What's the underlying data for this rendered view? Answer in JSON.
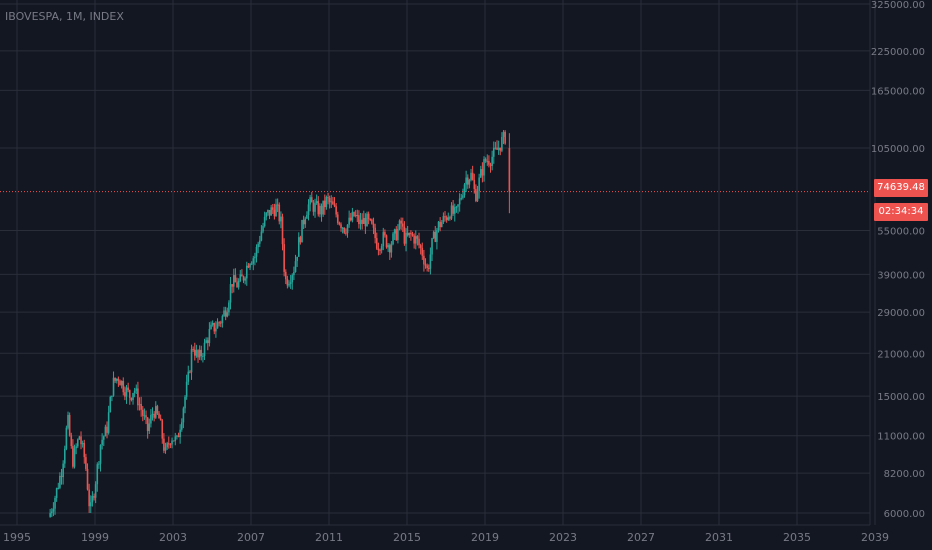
{
  "symbol_label": "IBOVESPA, 1M, INDEX",
  "last_price_label": "74639.48",
  "countdown_label": "02:34:34",
  "colors": {
    "background": "#131722",
    "grid": "#2a2e39",
    "axis_text": "#787b86",
    "up": "#26a69a",
    "down": "#ef5350",
    "price_line": "#ef5350"
  },
  "chart_data": {
    "type": "candlestick",
    "title": "IBOVESPA, 1M, INDEX",
    "scale": "log",
    "ylim": [
      6000,
      325000
    ],
    "y_ticks": [
      "6000.00",
      "8200.00",
      "11000.00",
      "15000.00",
      "21000.00",
      "29000.00",
      "39000.00",
      "55000.00",
      "74639.48",
      "105000.00",
      "165000.00",
      "225000.00",
      "325000.00"
    ],
    "x_ticks": [
      "1995",
      "1999",
      "2003",
      "2007",
      "2011",
      "2015",
      "2019",
      "2023",
      "2027",
      "2031",
      "2035",
      "2039"
    ],
    "grid": true,
    "last_price": 74639.48,
    "series": [
      {
        "values": [
          {
            "t": 1996.7,
            "close": 6000
          },
          {
            "t": 1997.0,
            "close": 7000
          },
          {
            "t": 1997.3,
            "close": 8500
          },
          {
            "t": 1997.6,
            "close": 12500
          },
          {
            "t": 1997.85,
            "close": 9000
          },
          {
            "t": 1998.2,
            "close": 11000
          },
          {
            "t": 1998.5,
            "close": 9000
          },
          {
            "t": 1998.75,
            "close": 6000
          },
          {
            "t": 1999.0,
            "close": 7500
          },
          {
            "t": 1999.3,
            "close": 10500
          },
          {
            "t": 1999.6,
            "close": 11500
          },
          {
            "t": 1999.9,
            "close": 16500
          },
          {
            "t": 2000.2,
            "close": 17500
          },
          {
            "t": 2000.5,
            "close": 16000
          },
          {
            "t": 2000.8,
            "close": 15000
          },
          {
            "t": 2001.0,
            "close": 16000
          },
          {
            "t": 2001.3,
            "close": 14000
          },
          {
            "t": 2001.7,
            "close": 11500
          },
          {
            "t": 2002.0,
            "close": 13500
          },
          {
            "t": 2002.3,
            "close": 12500
          },
          {
            "t": 2002.6,
            "close": 9500
          },
          {
            "t": 2002.9,
            "close": 11000
          },
          {
            "t": 2003.2,
            "close": 10500
          },
          {
            "t": 2003.5,
            "close": 13500
          },
          {
            "t": 2003.8,
            "close": 17500
          },
          {
            "t": 2004.0,
            "close": 22500
          },
          {
            "t": 2004.3,
            "close": 20000
          },
          {
            "t": 2004.6,
            "close": 22000
          },
          {
            "t": 2004.9,
            "close": 25000
          },
          {
            "t": 2005.2,
            "close": 26000
          },
          {
            "t": 2005.5,
            "close": 27500
          },
          {
            "t": 2005.8,
            "close": 31000
          },
          {
            "t": 2006.0,
            "close": 37000
          },
          {
            "t": 2006.3,
            "close": 36000
          },
          {
            "t": 2006.6,
            "close": 38000
          },
          {
            "t": 2006.9,
            "close": 44000
          },
          {
            "t": 2007.2,
            "close": 45000
          },
          {
            "t": 2007.5,
            "close": 54000
          },
          {
            "t": 2007.8,
            "close": 62000
          },
          {
            "t": 2008.0,
            "close": 64000
          },
          {
            "t": 2008.3,
            "close": 66000
          },
          {
            "t": 2008.55,
            "close": 58000
          },
          {
            "t": 2008.75,
            "close": 37000
          },
          {
            "t": 2008.95,
            "close": 38000
          },
          {
            "t": 2009.2,
            "close": 41000
          },
          {
            "t": 2009.5,
            "close": 52000
          },
          {
            "t": 2009.8,
            "close": 64000
          },
          {
            "t": 2010.0,
            "close": 68000
          },
          {
            "t": 2010.3,
            "close": 66000
          },
          {
            "t": 2010.6,
            "close": 64000
          },
          {
            "t": 2010.9,
            "close": 70000
          },
          {
            "t": 2011.2,
            "close": 66000
          },
          {
            "t": 2011.5,
            "close": 60000
          },
          {
            "t": 2011.8,
            "close": 56000
          },
          {
            "t": 2012.0,
            "close": 58000
          },
          {
            "t": 2012.3,
            "close": 62000
          },
          {
            "t": 2012.6,
            "close": 58000
          },
          {
            "t": 2012.9,
            "close": 60000
          },
          {
            "t": 2013.2,
            "close": 56000
          },
          {
            "t": 2013.5,
            "close": 49000
          },
          {
            "t": 2013.8,
            "close": 52000
          },
          {
            "t": 2014.1,
            "close": 49000
          },
          {
            "t": 2014.4,
            "close": 53000
          },
          {
            "t": 2014.7,
            "close": 58000
          },
          {
            "t": 2014.9,
            "close": 51000
          },
          {
            "t": 2015.2,
            "close": 53000
          },
          {
            "t": 2015.5,
            "close": 51000
          },
          {
            "t": 2015.8,
            "close": 46000
          },
          {
            "t": 2016.05,
            "close": 40000
          },
          {
            "t": 2016.3,
            "close": 50000
          },
          {
            "t": 2016.6,
            "close": 57000
          },
          {
            "t": 2016.9,
            "close": 60000
          },
          {
            "t": 2017.2,
            "close": 64000
          },
          {
            "t": 2017.5,
            "close": 62000
          },
          {
            "t": 2017.8,
            "close": 73000
          },
          {
            "t": 2018.0,
            "close": 83000
          },
          {
            "t": 2018.3,
            "close": 85000
          },
          {
            "t": 2018.5,
            "close": 72000
          },
          {
            "t": 2018.8,
            "close": 86000
          },
          {
            "t": 2019.0,
            "close": 95000
          },
          {
            "t": 2019.3,
            "close": 97000
          },
          {
            "t": 2019.6,
            "close": 103000
          },
          {
            "t": 2019.9,
            "close": 112000
          },
          {
            "t": 2020.05,
            "close": 115000
          },
          {
            "t": 2020.15,
            "close": 105000
          },
          {
            "t": 2020.25,
            "close": 74639.48
          }
        ]
      }
    ]
  }
}
